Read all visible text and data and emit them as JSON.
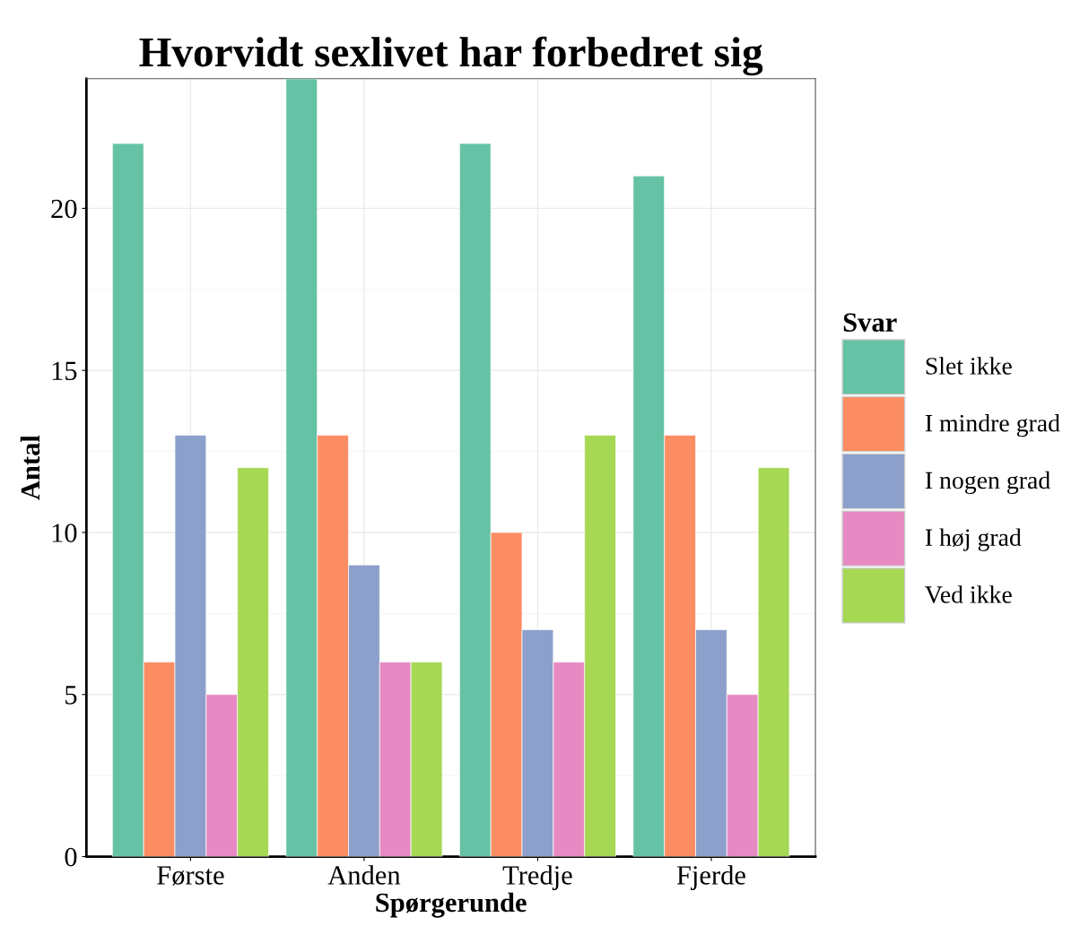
{
  "chart_data": {
    "type": "bar",
    "title": "Hvorvidt sexlivet har forbedret sig",
    "xlabel": "Spørgerunde",
    "ylabel": "Antal",
    "legend_title": "Svar",
    "legend": "right",
    "categories": [
      "Første",
      "Anden",
      "Tredje",
      "Fjerde"
    ],
    "series": [
      {
        "name": "Slet ikke",
        "color": "#66c2a5",
        "values": [
          22,
          24,
          22,
          21
        ]
      },
      {
        "name": "I mindre grad",
        "color": "#fc8d62",
        "values": [
          6,
          13,
          10,
          13
        ]
      },
      {
        "name": "I nogen grad",
        "color": "#8da0cb",
        "values": [
          13,
          9,
          7,
          7
        ]
      },
      {
        "name": "I høj grad",
        "color": "#e78ac3",
        "values": [
          5,
          6,
          6,
          5
        ]
      },
      {
        "name": "Ved ikke",
        "color": "#a6d854",
        "values": [
          12,
          6,
          13,
          12
        ]
      }
    ],
    "ylim": [
      0,
      24
    ],
    "yticks": [
      0,
      5,
      10,
      15,
      20
    ],
    "grid": true
  }
}
